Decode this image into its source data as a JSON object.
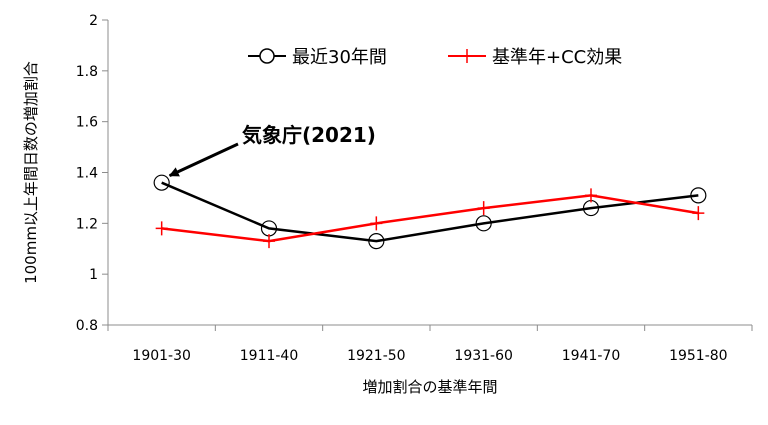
{
  "chart_data": {
    "type": "line",
    "categories": [
      "1901-30",
      "1911-40",
      "1921-50",
      "1931-60",
      "1941-70",
      "1951-80"
    ],
    "series": [
      {
        "name": "最近30年間",
        "values": [
          1.36,
          1.18,
          1.13,
          1.2,
          1.26,
          1.31
        ],
        "color": "#000000",
        "marker": "circle"
      },
      {
        "name": "基準年+CC効果",
        "values": [
          1.18,
          1.13,
          1.2,
          1.26,
          1.31,
          1.24
        ],
        "color": "#ff0000",
        "marker": "plus"
      }
    ],
    "xlabel": "増加割合の基準年間",
    "ylabel": "100mm以上年間日数の増加割合",
    "ylim": [
      0.8,
      2
    ],
    "yticks": [
      "0.8",
      "1",
      "1.2",
      "1.4",
      "1.6",
      "1.8",
      "2"
    ],
    "legend_position": "top-center",
    "annotation": {
      "text": "気象庁(2021)",
      "target_series": 0,
      "target_index": 0
    }
  }
}
